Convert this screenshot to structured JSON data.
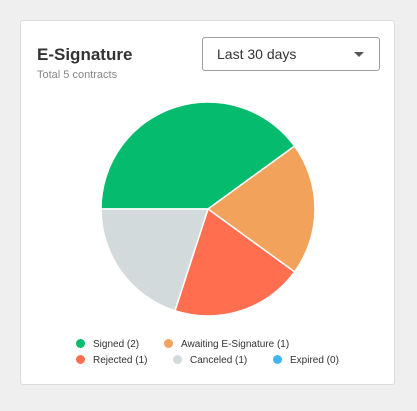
{
  "widget": {
    "title": "E-Signature",
    "subtitle": "Total 5 contracts"
  },
  "period_select": {
    "value": "Last 30 days",
    "caret_icon": "caret-down-icon"
  },
  "chart_data": {
    "type": "pie",
    "title": "",
    "categories": [
      "Signed",
      "Awaiting E-Signature",
      "Rejected",
      "Canceled",
      "Expired"
    ],
    "values": [
      2,
      1,
      1,
      1,
      0
    ],
    "colors": [
      "#05bb6d",
      "#f2a25a",
      "#ff6e4e",
      "#d3dadb",
      "#42b4f2"
    ],
    "legend_position": "bottom"
  },
  "legend": {
    "items": [
      {
        "label": "Signed (2)",
        "color": "#05bb6d"
      },
      {
        "label": "Awaiting E-Signature (1)",
        "color": "#f2a25a"
      },
      {
        "label": "Rejected (1)",
        "color": "#ff6e4e"
      },
      {
        "label": "Canceled (1)",
        "color": "#d3dadb"
      },
      {
        "label": "Expired (0)",
        "color": "#42b4f2"
      }
    ]
  }
}
